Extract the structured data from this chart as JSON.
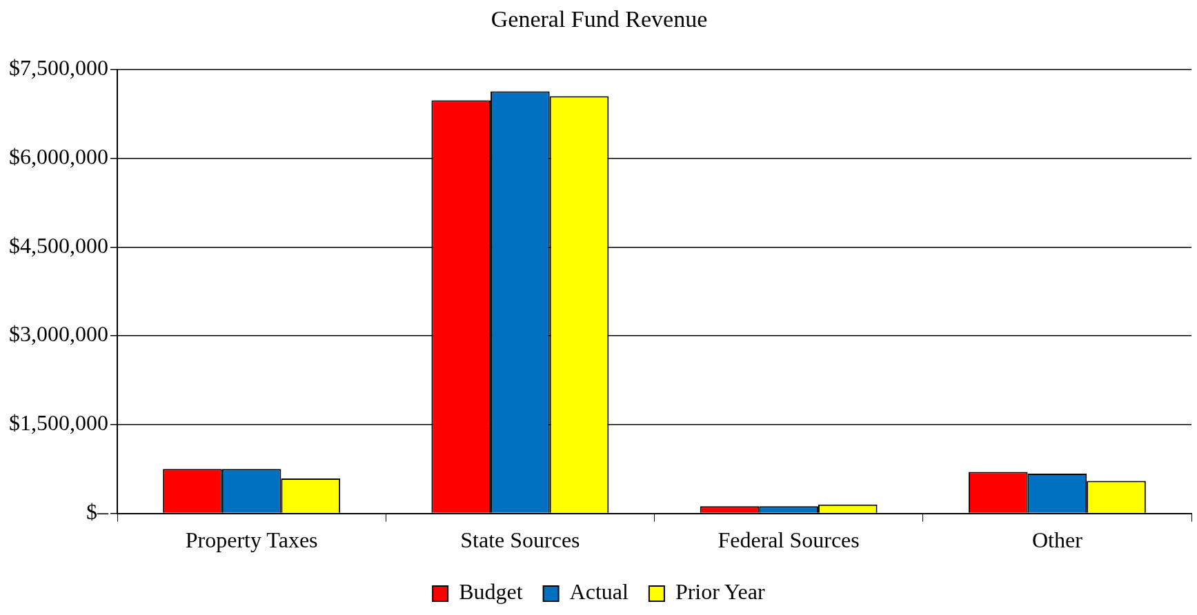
{
  "chart_data": {
    "type": "bar",
    "title": "General Fund Revenue",
    "categories": [
      "Property Taxes",
      "State Sources",
      "Federal Sources",
      "Other"
    ],
    "series": [
      {
        "name": "Budget",
        "color": "#ff0000",
        "values": [
          750000,
          6980000,
          120000,
          700000
        ]
      },
      {
        "name": "Actual",
        "color": "#0070c0",
        "values": [
          750000,
          7130000,
          120000,
          670000
        ]
      },
      {
        "name": "Prior Year",
        "color": "#ffff00",
        "values": [
          590000,
          7050000,
          150000,
          550000
        ]
      }
    ],
    "ylim": [
      0,
      7500000
    ],
    "yticks": [
      {
        "value": 0,
        "label": "$–"
      },
      {
        "value": 1500000,
        "label": "$1,500,000"
      },
      {
        "value": 3000000,
        "label": "$3,000,000"
      },
      {
        "value": 4500000,
        "label": "$4,500,000"
      },
      {
        "value": 6000000,
        "label": "$6,000,000"
      },
      {
        "value": 7500000,
        "label": "$7,500,000"
      }
    ],
    "grid": "y",
    "legend": "bottom"
  }
}
